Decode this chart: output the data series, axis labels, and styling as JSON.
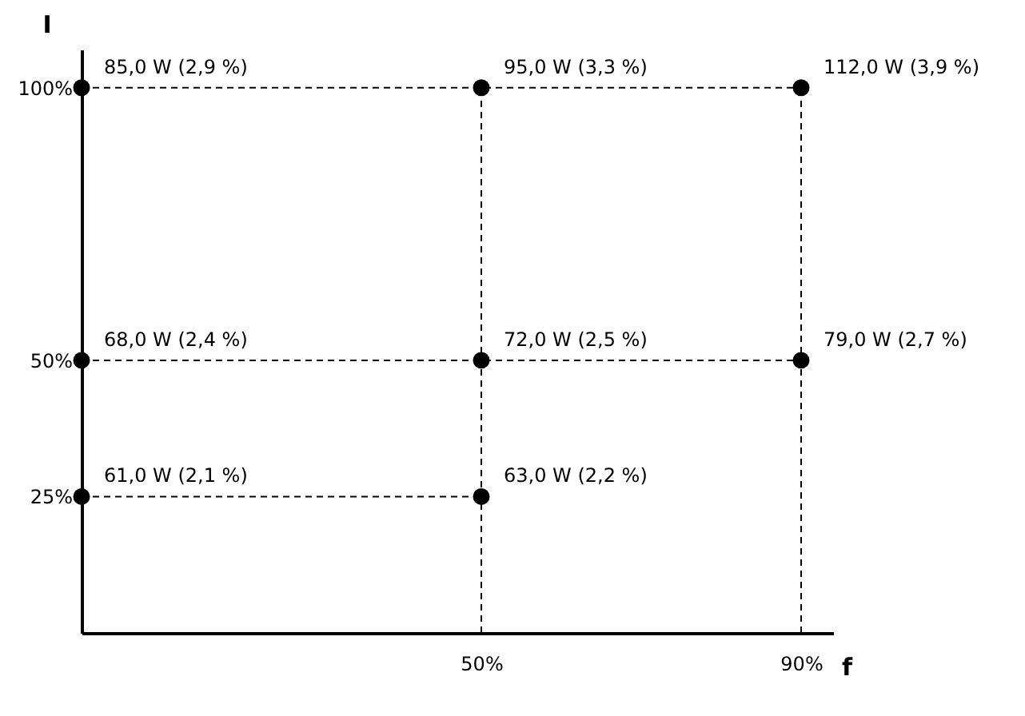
{
  "chart_data": {
    "type": "scatter",
    "xlabel": "f",
    "ylabel": "I",
    "xlim": [
      0,
      94
    ],
    "ylim": [
      0,
      107
    ],
    "xticks": [
      {
        "value": 50,
        "label": "50%"
      },
      {
        "value": 90,
        "label": "90%"
      }
    ],
    "yticks": [
      {
        "value": 25,
        "label": "25%"
      },
      {
        "value": 50,
        "label": "50%"
      },
      {
        "value": 100,
        "label": "100%"
      }
    ],
    "marker": "circle",
    "line_style": "dashed",
    "series": [
      {
        "type": "line",
        "color": "#000000",
        "x": [
          0,
          50,
          90
        ],
        "values": [
          100,
          100,
          100
        ]
      },
      {
        "type": "line",
        "color": "#000000",
        "x": [
          0,
          50,
          90
        ],
        "values": [
          50,
          50,
          50
        ]
      },
      {
        "type": "line",
        "color": "#000000",
        "x": [
          0,
          50
        ],
        "values": [
          25,
          25
        ]
      }
    ],
    "annotations": [
      {
        "text": "85,0 W (2,9 %)",
        "x": 0,
        "y": 100
      },
      {
        "text": "95,0 W (3,3 %)",
        "x": 50,
        "y": 100
      },
      {
        "text": "112,0 W (3,9 %)",
        "x": 90,
        "y": 100
      },
      {
        "text": "68,0 W (2,4 %)",
        "x": 0,
        "y": 50
      },
      {
        "text": "72,0 W (2,5 %)",
        "x": 50,
        "y": 50
      },
      {
        "text": "79,0 W (2,7 %)",
        "x": 90,
        "y": 50
      },
      {
        "text": "61,0 W (2,1 %)",
        "x": 0,
        "y": 25
      },
      {
        "text": "63,0 W (2,2 %)",
        "x": 50,
        "y": 25
      }
    ],
    "ref_lines": [
      {
        "axis": "x",
        "value": 50,
        "color": "#000000",
        "line_style": "dashed"
      },
      {
        "axis": "x",
        "value": 90,
        "color": "#000000",
        "line_style": "dashed"
      }
    ]
  }
}
